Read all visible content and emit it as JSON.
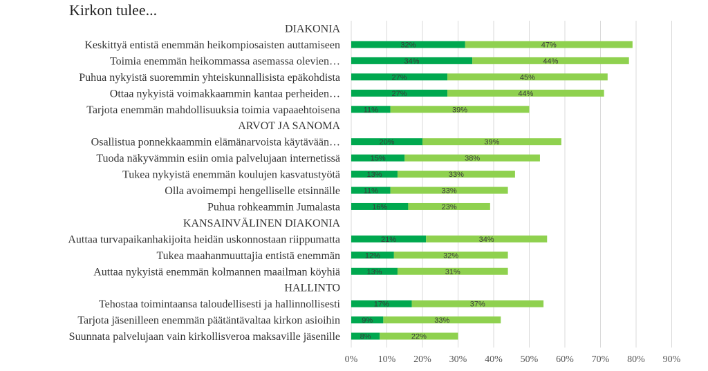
{
  "title": "Kirkon tulee...",
  "chart_data": {
    "type": "bar",
    "orientation": "horizontal",
    "stacked": true,
    "xlim": [
      0,
      90
    ],
    "x_ticks": [
      "0%",
      "10%",
      "20%",
      "30%",
      "40%",
      "50%",
      "60%",
      "70%",
      "80%",
      "90%"
    ],
    "grid": true,
    "colors": [
      "#00a84f",
      "#8fd14f"
    ],
    "categories": [
      "DIAKONIA",
      "Keskittyä entistä enemmän heikompiosaisten auttamiseen",
      "Toimia enemmän heikommassa asemassa olevien…",
      "Puhua nykyistä suoremmin yhteiskunnallisista epäkohdista",
      "Ottaa nykyistä voimakkaammin kantaa perheiden…",
      "Tarjota enemmän mahdollisuuksia toimia vapaaehtoisena",
      "ARVOT JA SANOMA",
      "Osallistua ponnekkaammin elämänarvoista käytävään…",
      "Tuoda näkyvämmin esiin omia palvelujaan internetissä",
      "Tukea nykyistä enemmän koulujen kasvatustyötä",
      "Olla avoimempi hengelliselle etsinnälle",
      "Puhua rohkeammin Jumalasta",
      "KANSAINVÄLINEN DIAKONIA",
      "Auttaa turvapaikanhakijoita heidän uskonnostaan riippumatta",
      "Tukea maahanmuuttajia entistä enemmän",
      "Auttaa nykyistä enemmän kolmannen maailman köyhiä",
      "HALLINTO",
      "Tehostaa toimintaansa taloudellisesti ja hallinnollisesti",
      "Tarjota jäsenilleen enemmän päätäntävaltaa kirkon asioihin",
      "Suunnata palvelujaan vain kirkollisveroa maksaville jäsenille"
    ],
    "series": [
      {
        "values": [
          null,
          32,
          34,
          27,
          27,
          11,
          null,
          20,
          15,
          13,
          11,
          16,
          null,
          21,
          12,
          13,
          null,
          17,
          9,
          8
        ],
        "labels": [
          "",
          "32%",
          "34%",
          "27%",
          "27%",
          "11%",
          "",
          "20%",
          "15%",
          "13%",
          "11%",
          "16%",
          "",
          "21%",
          "12%",
          "13%",
          "",
          "17%",
          "9%",
          "8%"
        ]
      },
      {
        "values": [
          null,
          47,
          44,
          45,
          44,
          39,
          null,
          39,
          38,
          33,
          33,
          23,
          null,
          34,
          32,
          31,
          null,
          37,
          33,
          22
        ],
        "labels": [
          "",
          "47%",
          "44%",
          "45%",
          "44%",
          "39%",
          "",
          "39%",
          "38%",
          "33%",
          "33%",
          "23%",
          "",
          "34%",
          "32%",
          "31%",
          "",
          "37%",
          "33%",
          "22%"
        ]
      }
    ]
  }
}
